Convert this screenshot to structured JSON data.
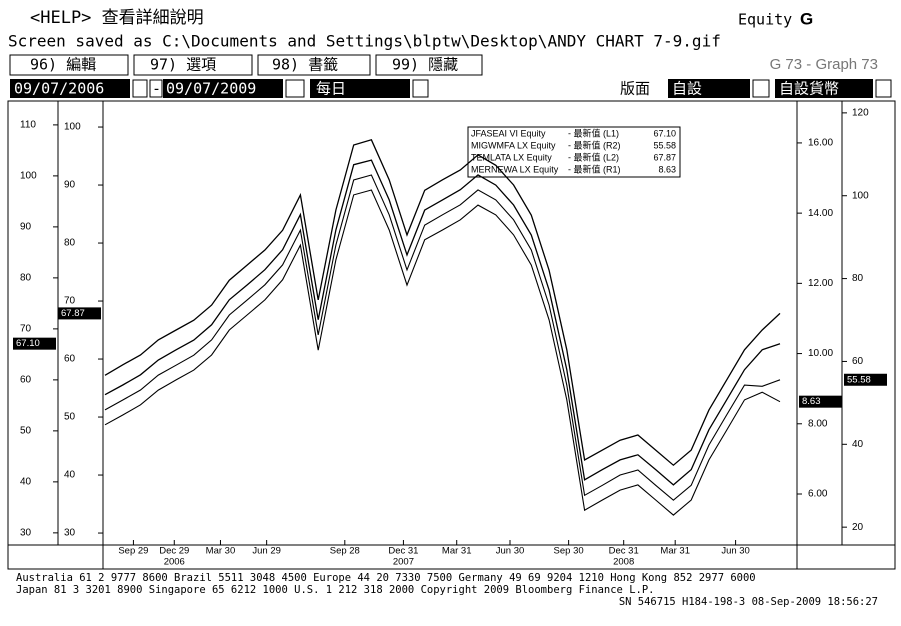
{
  "header": {
    "help": "<HELP> 查看詳細說明",
    "market": "Equity",
    "function": "G",
    "saved": "Screen saved as C:\\Documents and Settings\\blptw\\Desktop\\ANDY CHART 7-9.gif",
    "buttons": [
      "96) 編輯",
      "97) 選項",
      "98) 書籤",
      "99) 隱藏"
    ],
    "graph_name": "G 73 - Graph 73",
    "start_date": "09/07/2006",
    "date_sep": "-",
    "end_date": "09/07/2009",
    "period": "每日",
    "layout_label": "版面",
    "layout_value": "自設",
    "currency": "自設貨幣"
  },
  "chart_data": {
    "type": "line",
    "xlim": [
      0,
      38
    ],
    "xticks": [
      {
        "value": 1.6,
        "label": "Sep 29"
      },
      {
        "value": 3.9,
        "label": "Dec 29"
      },
      {
        "value": 6.5,
        "label": "Mar 30"
      },
      {
        "value": 9.1,
        "label": "Jun 29"
      },
      {
        "value": 13.5,
        "label": "Sep 28"
      },
      {
        "value": 16.8,
        "label": "Dec 31"
      },
      {
        "value": 19.8,
        "label": "Mar 31"
      },
      {
        "value": 22.8,
        "label": "Jun 30"
      },
      {
        "value": 26.1,
        "label": "Sep 30"
      },
      {
        "value": 29.2,
        "label": "Dec 31"
      },
      {
        "value": 32.1,
        "label": "Mar 31"
      },
      {
        "value": 35.5,
        "label": "Jun 30"
      }
    ],
    "year_ticks": [
      {
        "value": 3.9,
        "label": "2006"
      },
      {
        "value": 16.8,
        "label": "2007"
      },
      {
        "value": 29.2,
        "label": "2008"
      }
    ],
    "ylim": [
      28.6,
      113.9
    ],
    "yticks": [
      30,
      40,
      50,
      60,
      70,
      80,
      90,
      100,
      110
    ],
    "y3lim": [
      28.8,
      103.8
    ],
    "y3ticks": [
      30,
      40,
      50,
      60,
      70,
      80,
      90,
      100
    ],
    "y2lim": [
      4.69,
      17.08
    ],
    "y2ticks": [
      {
        "value": 6,
        "label": "6.00"
      },
      {
        "value": 8,
        "label": "8.00"
      },
      {
        "value": 10,
        "label": "10.00"
      },
      {
        "value": 12,
        "label": "12.00"
      },
      {
        "value": 14,
        "label": "14.00"
      },
      {
        "value": 16,
        "label": "16.00"
      }
    ],
    "y4lim": [
      16.9,
      121.9
    ],
    "y4ticks": [
      20,
      40,
      60,
      80,
      100,
      120
    ],
    "series": [
      {
        "name": "JFASEAI VI Equity",
        "legend_label": "- 最新值 (L1)",
        "last_label": "67.10",
        "axis": "y",
        "color": "#000000",
        "values": [
          57.1,
          59.0,
          61.0,
          63.9,
          65.9,
          67.8,
          70.8,
          75.7,
          78.6,
          81.6,
          85.5,
          92.4,
          71.8,
          89.4,
          102.2,
          103.1,
          95.3,
          84.5,
          93.3,
          95.3,
          97.3,
          100.2,
          98.2,
          94.3,
          88.4,
          77.6,
          62.0,
          40.4,
          42.4,
          44.3,
          45.3,
          42.4,
          39.4,
          42.4,
          50.2,
          56.1,
          62.0,
          65.9,
          67.1
        ]
      },
      {
        "name": "MIGWMFA LX Equity",
        "legend_label": "- 最新值 (R2)",
        "last_label": "55.58",
        "axis": "y4",
        "color": "#000000",
        "values": [
          48.3,
          50.7,
          53.1,
          56.7,
          59.1,
          61.5,
          65.2,
          71.2,
          74.8,
          78.5,
          83.3,
          91.7,
          66.4,
          88.1,
          103.8,
          105.0,
          95.4,
          82.1,
          92.9,
          95.4,
          97.8,
          101.4,
          99.0,
          94.2,
          86.9,
          73.6,
          54.3,
          27.7,
          30.1,
          32.6,
          33.8,
          30.1,
          26.5,
          30.1,
          39.8,
          47.1,
          54.3,
          54.0,
          55.58
        ]
      },
      {
        "name": "TEMLATA LX Equity",
        "legend_label": "- 最新值 (L2)",
        "last_label": "67.87",
        "axis": "y3",
        "color": "#000000",
        "values": [
          57.2,
          59.0,
          60.7,
          63.3,
          65.0,
          66.7,
          69.3,
          73.6,
          76.2,
          78.8,
          82.2,
          88.3,
          70.2,
          85.7,
          96.9,
          97.8,
          90.9,
          81.4,
          89.1,
          90.9,
          92.6,
          95.2,
          93.4,
          90.0,
          84.8,
          75.3,
          61.6,
          42.6,
          44.3,
          46.0,
          46.9,
          44.3,
          41.7,
          44.3,
          51.2,
          56.4,
          61.6,
          65.0,
          67.87
        ]
      },
      {
        "name": "MERNEWA LX Equity",
        "legend_label": "- 最新值 (R1)",
        "last_label": "8.63",
        "axis": "y2",
        "color": "#000000",
        "values": [
          7.97,
          8.25,
          8.54,
          8.96,
          9.25,
          9.53,
          9.96,
          10.67,
          11.1,
          11.53,
          12.1,
          13.09,
          10.1,
          12.67,
          14.52,
          14.66,
          13.52,
          11.95,
          13.24,
          13.52,
          13.81,
          14.23,
          13.95,
          13.38,
          12.52,
          10.96,
          8.68,
          5.54,
          5.83,
          6.11,
          6.26,
          5.83,
          5.4,
          5.83,
          6.97,
          7.82,
          8.68,
          8.9,
          8.63
        ]
      }
    ]
  },
  "footer": [
    "Australia 61 2 9777 8600 Brazil 5511 3048 4500 Europe 44 20 7330 7500 Germany 49 69 9204 1210 Hong Kong 852 2977 6000",
    "Japan 81 3 3201 8900         Singapore 65 6212 1000         U.S. 1 212 318 2000         Copyright 2009 Bloomberg Finance L.P.",
    "SN 546715 H184-198-3 08-Sep-2009 18:56:27"
  ]
}
